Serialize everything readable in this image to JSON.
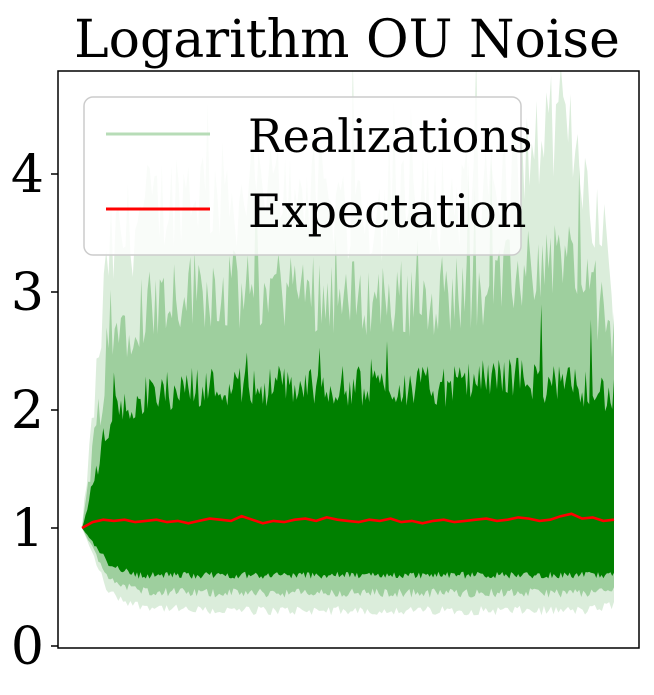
{
  "chart_data": {
    "type": "line",
    "title": "Logarithm OU Noise",
    "xlabel": "",
    "ylabel": "",
    "x_range": [
      0,
      1
    ],
    "x_ticks_visible": false,
    "ylim": [
      0,
      4.9
    ],
    "y_ticks": [
      0,
      1,
      2,
      3,
      4
    ],
    "y_tick_labels": [
      "0",
      "1",
      "2",
      "3",
      "4"
    ],
    "grid": false,
    "legend": {
      "placement": "top-left",
      "entries": [
        {
          "label": "Realizations",
          "color": "#b7dcb7"
        },
        {
          "label": "Expectation",
          "color": "#ff0000"
        }
      ]
    },
    "series": [
      {
        "name": "Realizations",
        "kind": "band",
        "color": "#008000",
        "x": [
          0.0,
          0.05,
          0.1,
          0.2,
          0.3,
          0.4,
          0.5,
          0.6,
          0.7,
          0.8,
          0.9,
          0.95,
          1.0
        ],
        "dense_band_low": [
          1.0,
          0.7,
          0.6,
          0.6,
          0.6,
          0.6,
          0.6,
          0.6,
          0.6,
          0.6,
          0.6,
          0.6,
          0.6
        ],
        "dense_band_high": [
          1.0,
          1.9,
          2.1,
          2.2,
          2.2,
          2.2,
          2.2,
          2.2,
          2.2,
          2.3,
          2.2,
          2.2,
          2.1
        ],
        "outer_low": [
          1.0,
          0.45,
          0.35,
          0.3,
          0.3,
          0.3,
          0.3,
          0.3,
          0.3,
          0.3,
          0.3,
          0.3,
          0.35
        ],
        "outer_high": [
          1.0,
          3.3,
          3.6,
          3.9,
          3.8,
          3.9,
          3.7,
          3.7,
          3.8,
          3.9,
          4.5,
          4.0,
          3.0
        ]
      },
      {
        "name": "Expectation",
        "color": "#ff0000",
        "x": [
          0.0,
          0.02,
          0.04,
          0.06,
          0.08,
          0.1,
          0.12,
          0.14,
          0.16,
          0.18,
          0.2,
          0.22,
          0.24,
          0.26,
          0.28,
          0.3,
          0.32,
          0.34,
          0.36,
          0.38,
          0.4,
          0.42,
          0.44,
          0.46,
          0.48,
          0.5,
          0.52,
          0.54,
          0.56,
          0.58,
          0.6,
          0.62,
          0.64,
          0.66,
          0.68,
          0.7,
          0.72,
          0.74,
          0.76,
          0.78,
          0.8,
          0.82,
          0.84,
          0.86,
          0.88,
          0.9,
          0.92,
          0.94,
          0.96,
          0.98,
          1.0
        ],
        "values": [
          1.0,
          1.05,
          1.07,
          1.06,
          1.07,
          1.05,
          1.06,
          1.07,
          1.05,
          1.06,
          1.04,
          1.06,
          1.08,
          1.07,
          1.06,
          1.1,
          1.07,
          1.04,
          1.06,
          1.05,
          1.07,
          1.08,
          1.06,
          1.09,
          1.07,
          1.06,
          1.05,
          1.07,
          1.06,
          1.08,
          1.05,
          1.06,
          1.04,
          1.06,
          1.07,
          1.05,
          1.06,
          1.07,
          1.08,
          1.06,
          1.07,
          1.09,
          1.08,
          1.06,
          1.07,
          1.1,
          1.12,
          1.08,
          1.09,
          1.06,
          1.07
        ]
      }
    ]
  }
}
